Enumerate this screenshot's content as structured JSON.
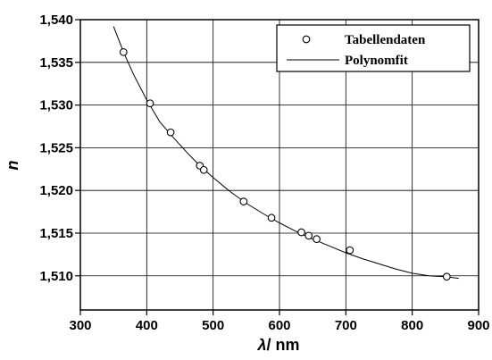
{
  "chart_data": {
    "type": "scatter",
    "xlabel_symbol": "λ",
    "xlabel_unit": "/ nm",
    "ylabel": "n",
    "xlim": [
      300,
      900
    ],
    "ylim": [
      1.506,
      1.54
    ],
    "xticks": [
      300,
      400,
      500,
      600,
      700,
      800,
      900
    ],
    "yticks": [
      1.51,
      1.515,
      1.52,
      1.525,
      1.53,
      1.535,
      1.54
    ],
    "xtick_labels": [
      "300",
      "400",
      "500",
      "600",
      "700",
      "800",
      "900"
    ],
    "ytick_labels": [
      "1,510",
      "1,515",
      "1,520",
      "1,525",
      "1,530",
      "1,535",
      "1,540"
    ],
    "grid": true,
    "legend_position": "top-right",
    "series": [
      {
        "name": "Tabellendaten",
        "kind": "markers",
        "marker": "open-circle",
        "x": [
          365,
          405,
          436,
          480,
          486,
          546,
          588,
          633,
          644,
          656,
          706,
          852
        ],
        "y": [
          1.5362,
          1.5302,
          1.5268,
          1.5229,
          1.5224,
          1.5187,
          1.5168,
          1.5151,
          1.5147,
          1.5143,
          1.513,
          1.5099
        ]
      },
      {
        "name": "Polynomfit",
        "kind": "line",
        "x": [
          350,
          365,
          380,
          400,
          420,
          440,
          460,
          480,
          500,
          525,
          550,
          575,
          600,
          625,
          650,
          675,
          700,
          725,
          750,
          775,
          800,
          825,
          850,
          870
        ],
        "y": [
          1.5392,
          1.5362,
          1.5336,
          1.5306,
          1.528,
          1.5262,
          1.5245,
          1.5229,
          1.5215,
          1.5199,
          1.5185,
          1.5173,
          1.5162,
          1.5152,
          1.5143,
          1.5135,
          1.5127,
          1.512,
          1.5114,
          1.5108,
          1.5103,
          1.51,
          1.5099,
          1.5097
        ]
      }
    ]
  }
}
